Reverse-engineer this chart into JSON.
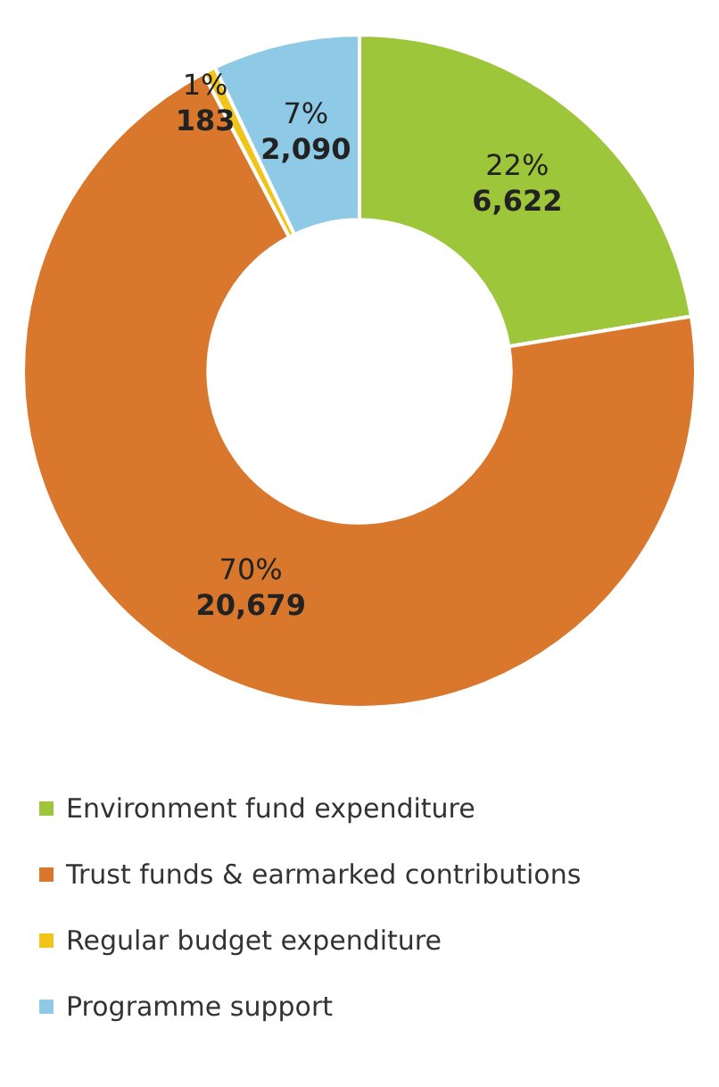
{
  "chart_data": {
    "type": "donut",
    "categories": [
      "Environment fund expenditure",
      "Trust funds & earmarked contributions",
      "Regular budget expenditure",
      "Programme support"
    ],
    "values": [
      6622,
      20679,
      183,
      2090
    ],
    "colors": [
      "#9dc63b",
      "#d9782d",
      "#f0c419",
      "#8ec9e6"
    ],
    "value_labels": [
      "22%\n6,622",
      "70%\n20,679",
      "1%\n183",
      "7%\n2,090"
    ],
    "legend": "bottom"
  }
}
